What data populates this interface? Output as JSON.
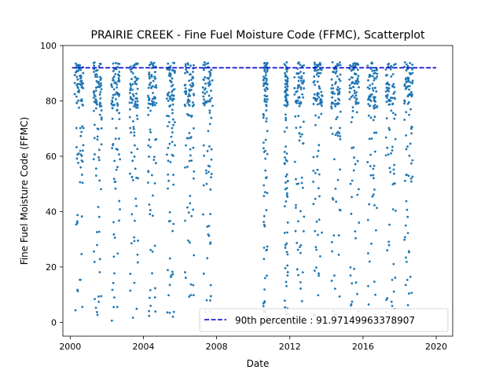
{
  "chart_data": {
    "type": "scatter",
    "title": "PRAIRIE CREEK - Fine Fuel Moisture Code (FFMC), Scatterplot",
    "xlabel": "Date",
    "ylabel": "Fine Fuel Moisture Code (FFMC)",
    "xlim": [
      1999.6,
      2020.9
    ],
    "ylim": [
      -5,
      100
    ],
    "xticks": [
      2000,
      2004,
      2008,
      2012,
      2016,
      2020
    ],
    "yticks": [
      0,
      20,
      40,
      60,
      80,
      100
    ],
    "grid": false,
    "legend": {
      "position": "bottom-right",
      "label": "90th percentile : 91.97149963378907"
    },
    "reference_line": {
      "y": 91.97149963378907,
      "x_range": [
        2000.1,
        2020.0
      ],
      "style": "dashed",
      "color": "#0000cc"
    },
    "point_color": "#1f77b4",
    "seasons": [
      {
        "year": 2000,
        "start": 2000.25,
        "end": 2000.72
      },
      {
        "year": 2001,
        "start": 2001.28,
        "end": 2001.72
      },
      {
        "year": 2002,
        "start": 2002.25,
        "end": 2002.72
      },
      {
        "year": 2003,
        "start": 2003.25,
        "end": 2003.72
      },
      {
        "year": 2004,
        "start": 2004.25,
        "end": 2004.72
      },
      {
        "year": 2005,
        "start": 2005.28,
        "end": 2005.72
      },
      {
        "year": 2006,
        "start": 2006.25,
        "end": 2006.78
      },
      {
        "year": 2007,
        "start": 2007.25,
        "end": 2007.78
      },
      {
        "year": 2010,
        "start": 2010.55,
        "end": 2010.78
      },
      {
        "year": 2011,
        "start": 2011.7,
        "end": 2011.9
      },
      {
        "year": 2012,
        "start": 2012.25,
        "end": 2012.78
      },
      {
        "year": 2013,
        "start": 2013.28,
        "end": 2013.78
      },
      {
        "year": 2014,
        "start": 2014.25,
        "end": 2014.78
      },
      {
        "year": 2015,
        "start": 2015.25,
        "end": 2015.78
      },
      {
        "year": 2016,
        "start": 2016.25,
        "end": 2016.78
      },
      {
        "year": 2017,
        "start": 2017.25,
        "end": 2017.78
      },
      {
        "year": 2018,
        "start": 2018.25,
        "end": 2018.72
      }
    ],
    "points_per_season": 90,
    "ffmc_range": [
      0,
      95.5
    ]
  }
}
